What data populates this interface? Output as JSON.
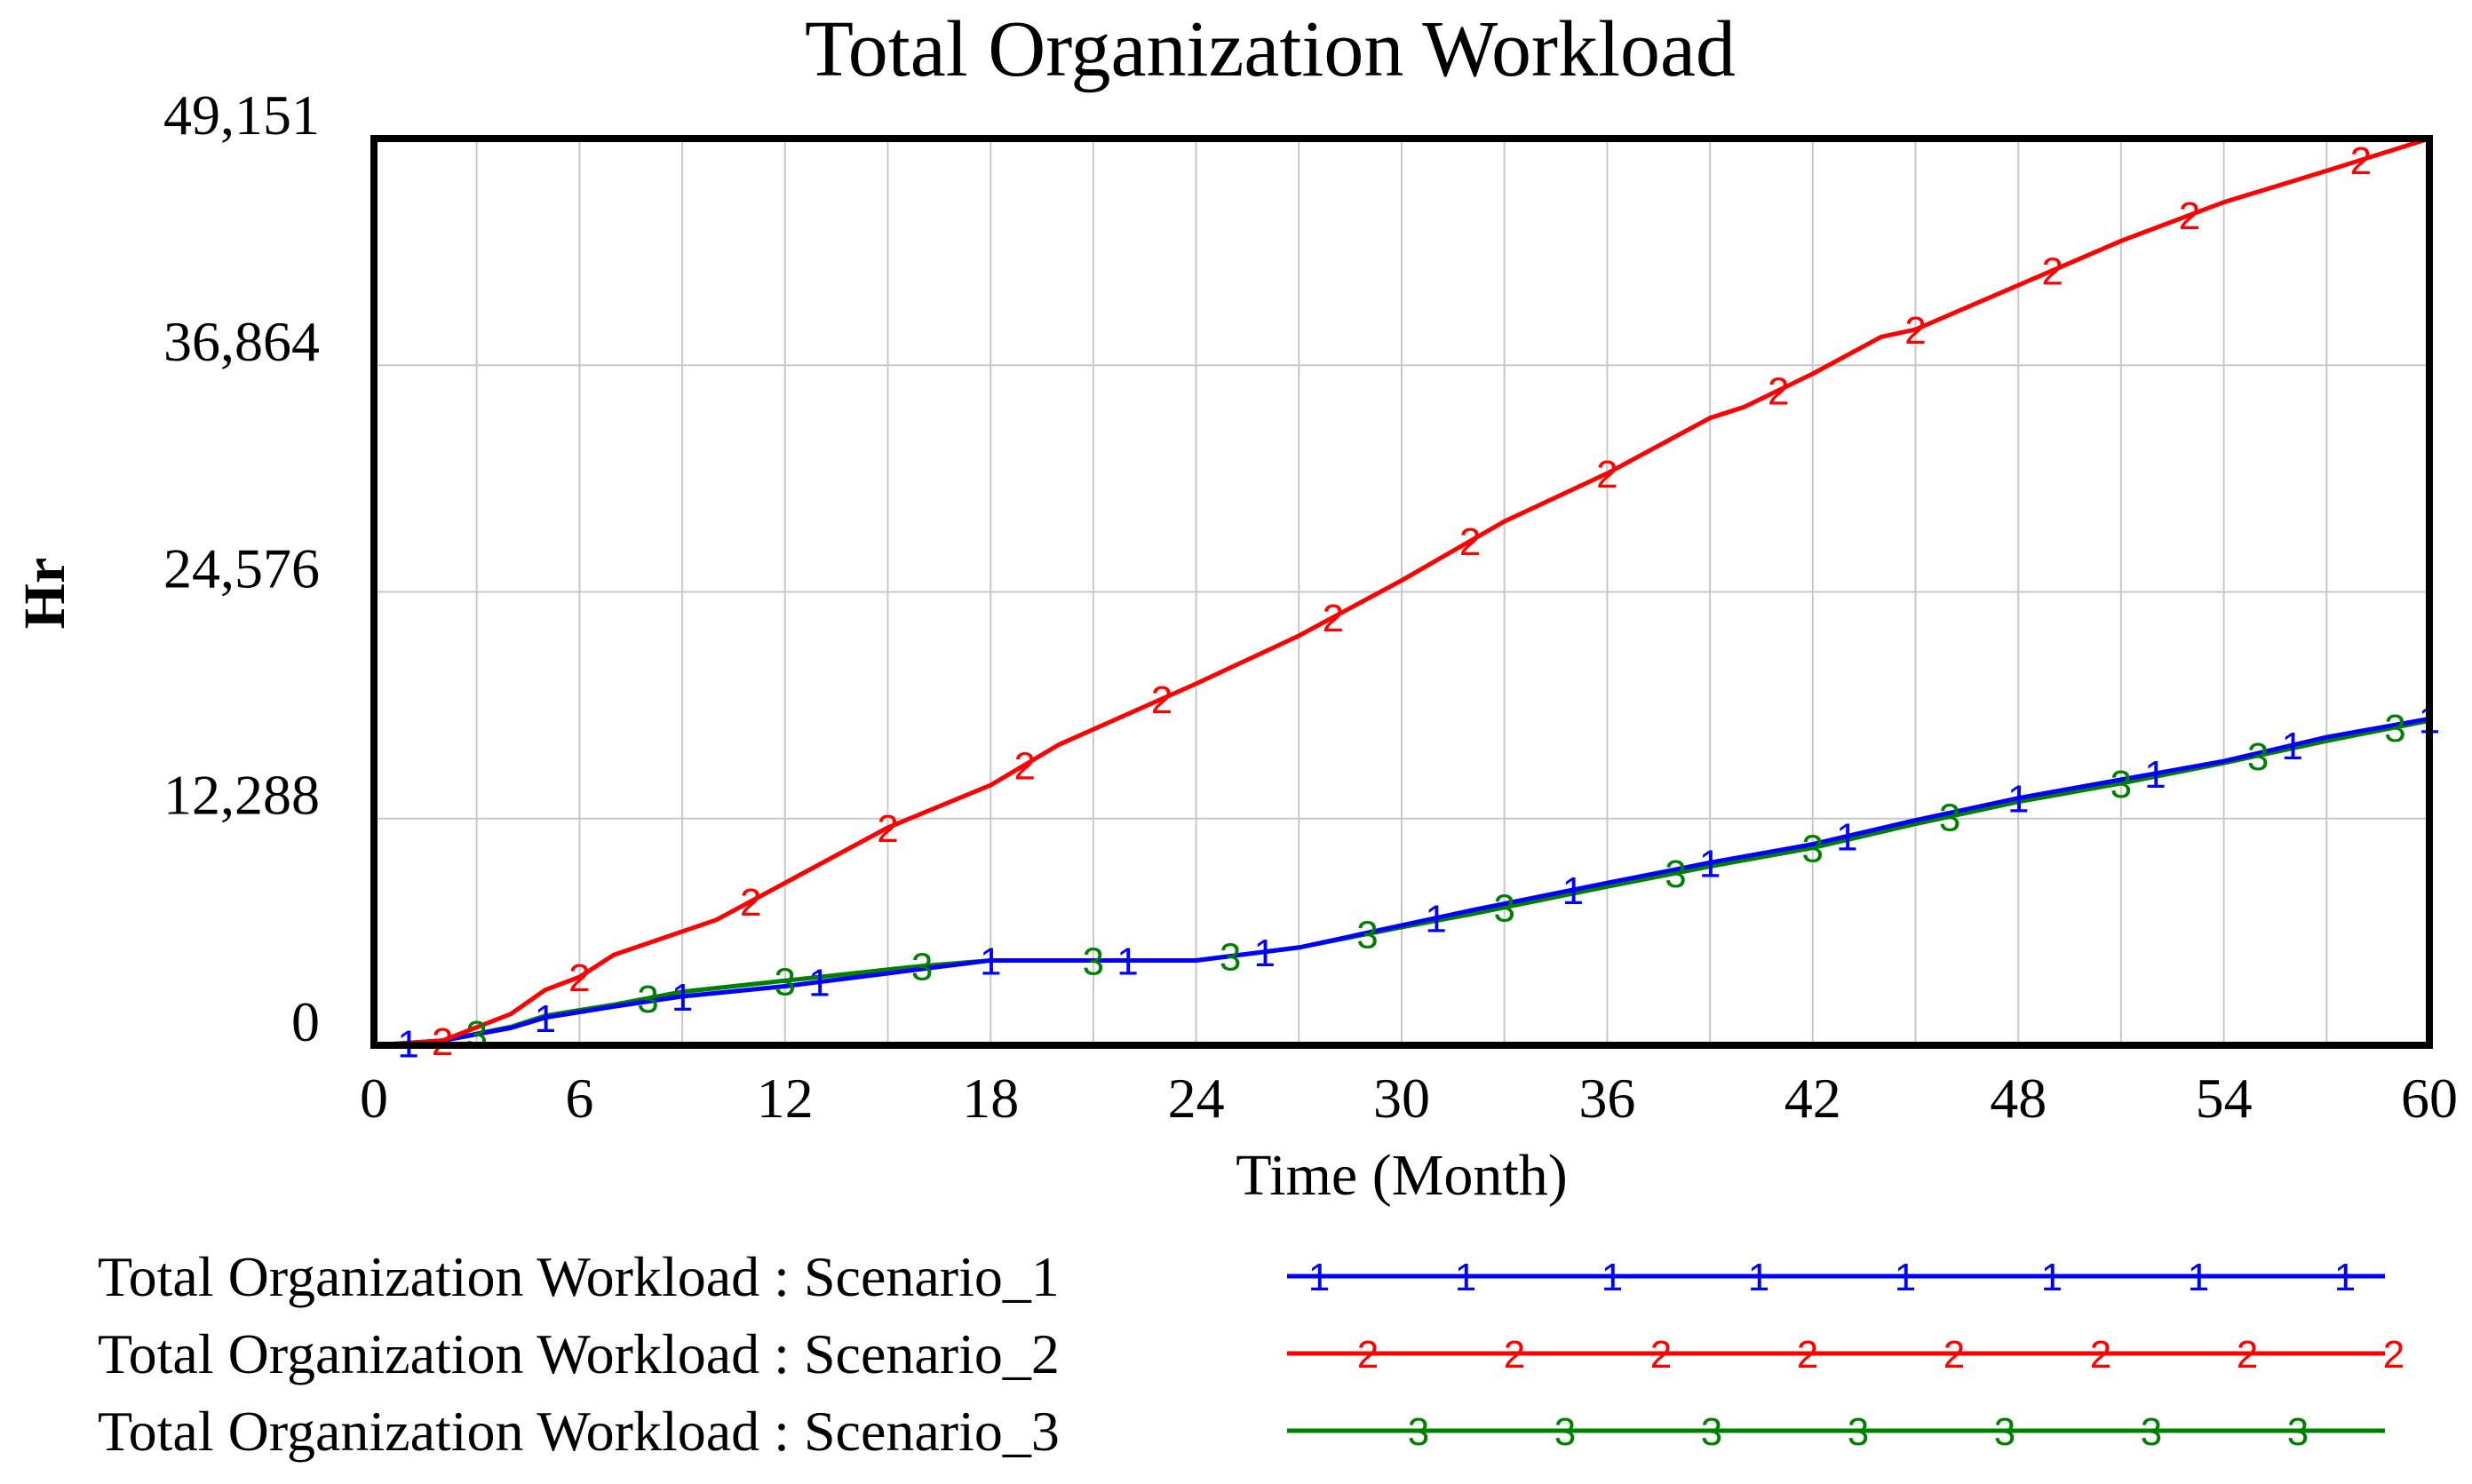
{
  "chart_data": {
    "type": "line",
    "title": "Total Organization Workload",
    "xlabel": "Time (Month)",
    "ylabel": "Hr",
    "xlim": [
      0,
      60
    ],
    "ylim": [
      0,
      49151
    ],
    "x_ticks": [
      "0",
      "6",
      "12",
      "18",
      "24",
      "30",
      "36",
      "42",
      "48",
      "54",
      "60"
    ],
    "y_ticks": [
      "0",
      "12,288",
      "24,576",
      "36,864",
      "49,151"
    ],
    "grid": true,
    "legend_position": "bottom",
    "series": [
      {
        "name": "Total Organization Workload : Scenario_1",
        "marker": "1",
        "color": "#0000ff",
        "x": [
          0,
          2,
          4,
          5,
          7,
          9,
          12,
          15,
          18,
          24,
          27,
          30,
          32,
          36,
          39,
          42,
          45,
          48,
          51,
          54,
          57,
          60
        ],
        "y": [
          0,
          250,
          940,
          1500,
          2100,
          2650,
          3200,
          3900,
          4600,
          4600,
          5300,
          6500,
          7300,
          8800,
          9900,
          10900,
          12200,
          13400,
          14400,
          15400,
          16700,
          17700
        ]
      },
      {
        "name": "Total Organization Workload : Scenario_2",
        "marker": "2",
        "color": "#ff0000",
        "x": [
          0,
          2,
          4,
          5,
          6,
          7,
          10,
          12,
          15,
          18,
          20,
          24,
          27,
          30,
          33,
          36,
          39,
          40,
          42,
          44,
          45,
          48,
          51,
          54,
          57,
          60
        ],
        "y": [
          0,
          250,
          1700,
          3000,
          3700,
          4900,
          6800,
          8800,
          11800,
          14100,
          16300,
          19600,
          22200,
          25200,
          28400,
          31000,
          34000,
          34600,
          36400,
          38400,
          38800,
          41200,
          43600,
          45700,
          47400,
          49151
        ]
      },
      {
        "name": "Total Organization Workload : Scenario_3",
        "marker": "3",
        "color": "#008000",
        "x": [
          0,
          2,
          4,
          5,
          7,
          9,
          12,
          16,
          18,
          24,
          27,
          30,
          32,
          36,
          39,
          42,
          45,
          48,
          51,
          54,
          57,
          60
        ],
        "y": [
          0,
          250,
          1000,
          1600,
          2200,
          2900,
          3500,
          4300,
          4600,
          4600,
          5300,
          6400,
          7100,
          8600,
          9700,
          10700,
          12000,
          13200,
          14200,
          15300,
          16500,
          17600
        ]
      }
    ],
    "marker_positions": {
      "1": [
        1,
        5,
        9,
        13,
        18,
        22,
        26,
        31,
        35,
        39,
        43,
        48,
        52,
        56,
        60
      ],
      "2": [
        2,
        6,
        11,
        15,
        19,
        23,
        28,
        32,
        36,
        41,
        45,
        49,
        53,
        58
      ],
      "3": [
        3,
        8,
        12,
        16,
        21,
        25,
        29,
        33,
        38,
        42,
        46,
        51,
        55,
        59
      ]
    }
  }
}
